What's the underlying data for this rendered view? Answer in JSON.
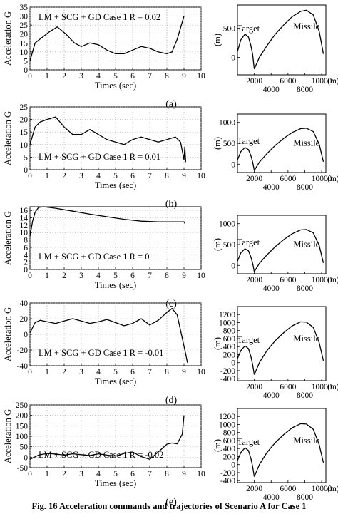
{
  "figure": {
    "caption": "Fig. 16   Acceleration commands and trajectories of Scenario A for Case 1"
  },
  "chart_data": [
    {
      "type": "line",
      "panel": "(a)",
      "annotation": "LM + SCG + GD Case 1 R = 0.02",
      "xlabel": "Times (sec)",
      "ylabel": "Acceleration G",
      "xlim": [
        0,
        10
      ],
      "ylim": [
        0,
        35
      ],
      "xticks": [
        0,
        1,
        2,
        3,
        4,
        5,
        6,
        7,
        8,
        9,
        10
      ],
      "yticks": [
        0,
        5,
        10,
        15,
        20,
        25,
        30,
        35
      ],
      "grid": true,
      "x": [
        0,
        0.3,
        0.7,
        1.1,
        1.6,
        2.1,
        2.6,
        3.0,
        3.5,
        4.0,
        4.5,
        5.0,
        5.5,
        6.0,
        6.5,
        7.0,
        7.5,
        8.0,
        8.3,
        8.6,
        9.0
      ],
      "y": [
        5,
        15,
        18,
        21,
        24,
        20,
        15,
        13,
        15,
        14,
        11,
        9,
        9,
        11,
        13,
        12,
        10,
        9,
        10,
        17,
        30
      ]
    },
    {
      "type": "line",
      "panel": "(b)",
      "annotation": "LM + SCG + GD Case 1 R = 0.01",
      "xlabel": "Times (sec)",
      "ylabel": "Acceleration G",
      "xlim": [
        0,
        10
      ],
      "ylim": [
        0,
        25
      ],
      "xticks": [
        0,
        1,
        2,
        3,
        4,
        5,
        6,
        7,
        8,
        9,
        10
      ],
      "yticks": [
        0,
        5,
        10,
        15,
        20,
        25
      ],
      "grid": true,
      "x": [
        0,
        0.3,
        0.6,
        1.0,
        1.5,
        2.0,
        2.5,
        3.0,
        3.5,
        4.0,
        4.5,
        5.0,
        5.5,
        6.0,
        6.5,
        7.0,
        7.5,
        8.0,
        8.5,
        8.8,
        9.0,
        9.05,
        9.1
      ],
      "y": [
        10,
        17,
        19,
        20,
        21,
        17,
        14,
        14,
        16,
        14,
        12,
        11,
        10,
        12,
        13,
        12,
        11,
        12,
        13,
        11,
        4,
        9,
        3
      ]
    },
    {
      "type": "line",
      "panel": "(c)",
      "annotation": "LM + SCG + GD Case 1 R = 0",
      "xlabel": "Times (sec)",
      "ylabel": "Acceleration G",
      "xlim": [
        0,
        10
      ],
      "ylim": [
        0,
        17
      ],
      "xticks": [
        0,
        1,
        2,
        3,
        4,
        5,
        6,
        7,
        8,
        9,
        10
      ],
      "yticks": [
        0,
        2,
        4,
        6,
        8,
        10,
        12,
        14,
        16
      ],
      "grid": true,
      "x": [
        0,
        0.15,
        0.3,
        0.5,
        0.8,
        1.5,
        2.5,
        3.5,
        4.5,
        5.5,
        6.5,
        7.5,
        8.5,
        9.0,
        9.05
      ],
      "y": [
        9,
        13,
        15.5,
        16.8,
        17,
        16.6,
        15.8,
        15,
        14.3,
        13.6,
        13.1,
        12.9,
        12.9,
        12.9,
        12.5
      ]
    },
    {
      "type": "line",
      "panel": "(d)",
      "annotation": "LM + SCG + GD Case 1 R = -0.01",
      "xlabel": "Times (sec)",
      "ylabel": "Acceleration G",
      "xlim": [
        0,
        10
      ],
      "ylim": [
        -40,
        40
      ],
      "xticks": [
        0,
        1,
        2,
        3,
        4,
        5,
        6,
        7,
        8,
        9,
        10
      ],
      "yticks": [
        -40,
        -20,
        0,
        20,
        40
      ],
      "grid": true,
      "x": [
        0,
        0.3,
        0.6,
        1.0,
        1.5,
        2.0,
        2.5,
        3.0,
        3.5,
        4.0,
        4.5,
        5.0,
        5.5,
        6.0,
        6.5,
        7.0,
        7.5,
        8.0,
        8.3,
        8.6,
        8.9,
        9.1,
        9.2
      ],
      "y": [
        2,
        15,
        18,
        16,
        14,
        17,
        20,
        17,
        14,
        16,
        19,
        15,
        11,
        14,
        20,
        12,
        18,
        28,
        33,
        25,
        -5,
        -25,
        -36
      ]
    },
    {
      "type": "line",
      "panel": "(e)",
      "annotation": "LM + SCG + GD Case 1 R = -0.02",
      "xlabel": "Times (sec)",
      "ylabel": "Acceleration G",
      "xlim": [
        0,
        10
      ],
      "ylim": [
        -50,
        250
      ],
      "xticks": [
        0,
        1,
        2,
        3,
        4,
        5,
        6,
        7,
        8,
        9,
        10
      ],
      "yticks": [
        -50,
        0,
        50,
        100,
        150,
        200,
        250
      ],
      "grid": true,
      "x": [
        0,
        0.5,
        1.0,
        1.5,
        2.0,
        2.5,
        3.0,
        3.5,
        4.0,
        4.5,
        5.0,
        5.5,
        6.0,
        6.5,
        7.0,
        7.5,
        8.0,
        8.3,
        8.6,
        8.9,
        9.0
      ],
      "y": [
        -10,
        10,
        18,
        15,
        10,
        16,
        12,
        8,
        16,
        10,
        5,
        18,
        25,
        3,
        -10,
        25,
        62,
        68,
        64,
        110,
        200
      ]
    },
    {
      "type": "line",
      "panel": "(a)",
      "xlabel": "",
      "ylabel": "(m)",
      "xunit": "(m)",
      "xlim": [
        0,
        10500
      ],
      "ylim": [
        -300,
        900
      ],
      "xticks": [
        2000,
        4000,
        6000,
        8000,
        10000
      ],
      "xticklabels": [
        "2000",
        "4000",
        "6000",
        "8000",
        "10000"
      ],
      "yticks": [
        0,
        500
      ],
      "grid": false,
      "series": [
        {
          "name": "Target",
          "x": [
            0,
            400,
            900,
            1300,
            1600,
            1800,
            2000
          ],
          "y": [
            100,
            300,
            400,
            350,
            200,
            50,
            -200
          ]
        },
        {
          "name": "Missile",
          "x": [
            2000,
            2600,
            3500,
            4500,
            5500,
            6500,
            7500,
            8200,
            9000,
            9700,
            10200
          ],
          "y": [
            -200,
            0,
            200,
            400,
            560,
            700,
            790,
            810,
            730,
            450,
            60
          ]
        }
      ]
    },
    {
      "type": "line",
      "panel": "(b)",
      "xlabel": "",
      "ylabel": "(m)",
      "xunit": "(m)",
      "xlim": [
        0,
        10500
      ],
      "ylim": [
        -200,
        1200
      ],
      "xticks": [
        2000,
        4000,
        6000,
        8000,
        10000
      ],
      "xticklabels": [
        "2000",
        "4000",
        "6000",
        "8000",
        "10000"
      ],
      "yticks": [
        0,
        500,
        1000
      ],
      "grid": false,
      "series": [
        {
          "name": "Target",
          "x": [
            0,
            400,
            900,
            1300,
            1600,
            1800,
            2000
          ],
          "y": [
            100,
            300,
            400,
            350,
            200,
            50,
            -150
          ]
        },
        {
          "name": "Missile",
          "x": [
            2000,
            2600,
            3500,
            4500,
            5500,
            6500,
            7500,
            8200,
            9000,
            9700,
            10200
          ],
          "y": [
            -150,
            50,
            250,
            450,
            620,
            760,
            850,
            860,
            780,
            480,
            60
          ]
        }
      ]
    },
    {
      "type": "line",
      "panel": "(c)",
      "xlabel": "",
      "ylabel": "(m)",
      "xunit": "(m)",
      "xlim": [
        0,
        10500
      ],
      "ylim": [
        -200,
        1200
      ],
      "xticks": [
        2000,
        4000,
        6000,
        8000,
        10000
      ],
      "xticklabels": [
        "2000",
        "4000",
        "6000",
        "8000",
        "10000"
      ],
      "yticks": [
        0,
        500,
        1000
      ],
      "grid": false,
      "series": [
        {
          "name": "Target",
          "x": [
            0,
            400,
            900,
            1300,
            1600,
            1800,
            2000
          ],
          "y": [
            100,
            300,
            400,
            350,
            200,
            50,
            -150
          ]
        },
        {
          "name": "Missile",
          "x": [
            2000,
            2600,
            3500,
            4500,
            5500,
            6500,
            7500,
            8200,
            9000,
            9700,
            10200
          ],
          "y": [
            -150,
            50,
            250,
            450,
            620,
            760,
            850,
            860,
            780,
            480,
            60
          ]
        }
      ]
    },
    {
      "type": "line",
      "panel": "(d)",
      "xlabel": "",
      "ylabel": "(m)",
      "xunit": "(m)",
      "xlim": [
        0,
        10500
      ],
      "ylim": [
        -450,
        1400
      ],
      "xticks": [
        2000,
        4000,
        6000,
        8000,
        10000
      ],
      "xticklabels": [
        "2000",
        "4000",
        "6000",
        "8000",
        "10000"
      ],
      "yticks": [
        -400,
        -200,
        0,
        200,
        400,
        600,
        800,
        1000,
        1200
      ],
      "grid": false,
      "series": [
        {
          "name": "Target",
          "x": [
            0,
            400,
            900,
            1300,
            1600,
            1800,
            2000
          ],
          "y": [
            100,
            300,
            420,
            350,
            150,
            -50,
            -300
          ]
        },
        {
          "name": "Missile",
          "x": [
            2000,
            2600,
            3500,
            4500,
            5500,
            6500,
            7500,
            8200,
            9000,
            9700,
            10200
          ],
          "y": [
            -300,
            0,
            300,
            550,
            750,
            920,
            1020,
            1010,
            880,
            500,
            50
          ]
        }
      ]
    },
    {
      "type": "line",
      "panel": "(e)",
      "xlabel": "",
      "ylabel": "(m)",
      "xunit": "(m)",
      "xlim": [
        0,
        10500
      ],
      "ylim": [
        -450,
        1400
      ],
      "xticks": [
        2000,
        4000,
        6000,
        8000,
        10000
      ],
      "xticklabels": [
        "2000",
        "4000",
        "6000",
        "8000",
        "10000"
      ],
      "yticks": [
        -400,
        -200,
        0,
        200,
        400,
        600,
        800,
        1000,
        1200
      ],
      "grid": false,
      "series": [
        {
          "name": "Target",
          "x": [
            0,
            400,
            900,
            1300,
            1600,
            1800,
            2000
          ],
          "y": [
            100,
            300,
            420,
            350,
            150,
            -50,
            -300
          ]
        },
        {
          "name": "Missile",
          "x": [
            2000,
            2600,
            3500,
            4500,
            5500,
            6500,
            7500,
            8200,
            9000,
            9700,
            10200
          ],
          "y": [
            -300,
            0,
            300,
            550,
            750,
            920,
            1020,
            1010,
            880,
            500,
            50
          ]
        }
      ]
    }
  ]
}
